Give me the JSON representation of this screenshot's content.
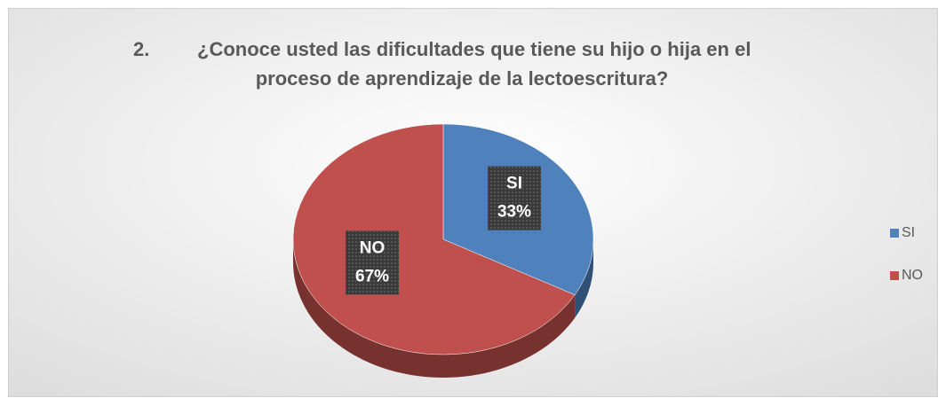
{
  "chart_data": {
    "type": "pie",
    "title_number": "2.",
    "title": [
      "¿Conoce usted las dificultades que tiene su hijo o hija en el",
      "proceso de aprendizaje de la lectoescritura?"
    ],
    "categories": [
      "SI",
      "NO"
    ],
    "values": [
      33,
      67
    ],
    "value_labels": [
      "33%",
      "67%"
    ],
    "colors": [
      "#4f81bd",
      "#c0504d"
    ],
    "legend": "right"
  }
}
